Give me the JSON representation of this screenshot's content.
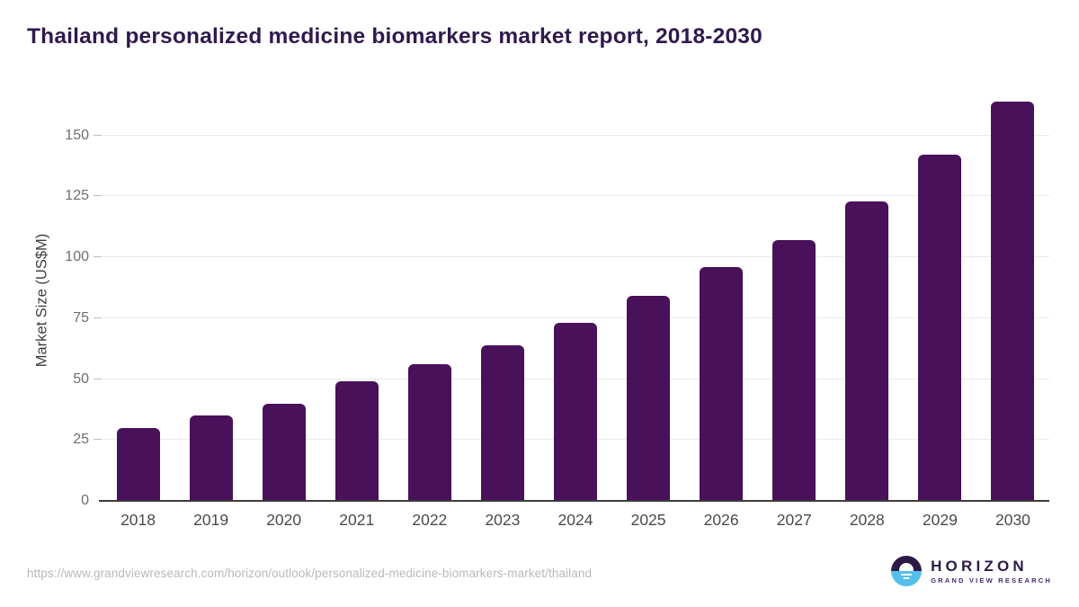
{
  "title": "Thailand personalized medicine biomarkers market report, 2018-2030",
  "chart_data": {
    "type": "bar",
    "title": "Thailand personalized medicine biomarkers market report, 2018-2030",
    "xlabel": "",
    "ylabel": "Market Size (US$M)",
    "categories": [
      "2018",
      "2019",
      "2020",
      "2021",
      "2022",
      "2023",
      "2024",
      "2025",
      "2026",
      "2027",
      "2028",
      "2029",
      "2030"
    ],
    "values": [
      30,
      35,
      40,
      49,
      56,
      64,
      73,
      84,
      96,
      107,
      123,
      142,
      164
    ],
    "yticks": [
      0,
      25,
      50,
      75,
      100,
      125,
      150
    ],
    "ylim": [
      0,
      168
    ],
    "grid": true,
    "legend": false,
    "bar_color": "#481159"
  },
  "footer": {
    "source_url": "https://www.grandviewresearch.com/horizon/outlook/personalized-medicine-biomarkers-market/thailand",
    "logo": {
      "brand": "HORIZON",
      "sub_brand": "GRAND VIEW RESEARCH",
      "icon": "sun-over-horizon-icon"
    }
  },
  "colors": {
    "bar": "#481159",
    "title_text": "#2F1A4D",
    "axis_line": "#3d3d3d",
    "gridline": "#eaeaea",
    "y_tick_text": "#6e6e6e",
    "x_tick_text": "#4a4a4a",
    "source_text": "#b9b9b9",
    "logo_dark_purple": "#2E1A47",
    "logo_light_blue": "#55C0E9"
  }
}
